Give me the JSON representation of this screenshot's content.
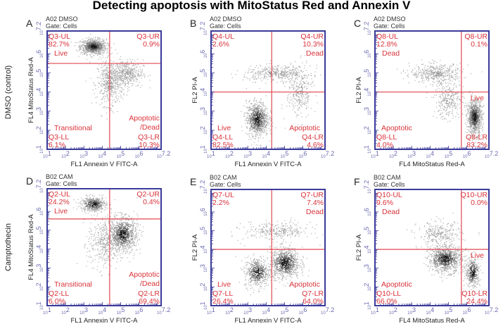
{
  "title": "Detecting apoptosis with MitoStatus Red and Annexin V",
  "row_labels": [
    "DMSO (control)",
    "Camptothecin"
  ],
  "colors": {
    "frame": "#3a3a9a",
    "gate": "#e0474f",
    "text_red": "#d9333a",
    "tick": "#6a6ab0",
    "dots": "#b0b0b0",
    "dense": "#1a1a1a"
  },
  "chart_data": [
    {
      "type": "scatter",
      "panel": "A",
      "sample": "A02 DMSO",
      "gate": "Gate: Cells",
      "xlabel": "FL1 Annexin V FITC-A",
      "ylabel": "FL4 MitoStatus Red-A",
      "xlim_log10": [
        1,
        7.2
      ],
      "ylim_log10": [
        1,
        7.2
      ],
      "x_ticks": [
        "10^1",
        "10^2",
        "10^3",
        "10^4",
        "10^5",
        "10^6",
        "10^7.2"
      ],
      "y_ticks": [
        "10^1",
        "10^2",
        "10^3",
        "10^4",
        "10^5",
        "10^6",
        "10^7.2"
      ],
      "gate_x_log10": 4.4,
      "gate_y_log10": 5.5,
      "quadrants": [
        {
          "id": "Q3-UL",
          "pct": "82.7%",
          "label": "Live"
        },
        {
          "id": "Q3-UR",
          "pct": "0.9%",
          "label": ""
        },
        {
          "id": "Q3-LL",
          "pct": "6.1%",
          "label": "Transitional"
        },
        {
          "id": "Q3-LR",
          "pct": "10.3%",
          "label": "Apoptotic\n/Dead"
        }
      ],
      "populations": [
        {
          "x": 3.5,
          "y": 6.4,
          "sx": 0.35,
          "sy": 0.2,
          "n": 900,
          "dense": true
        },
        {
          "x": 4.4,
          "y": 4.5,
          "sx": 0.35,
          "sy": 0.6,
          "n": 500,
          "dense": false
        },
        {
          "x": 5.3,
          "y": 5.0,
          "sx": 0.45,
          "sy": 0.35,
          "n": 450,
          "dense": false
        }
      ]
    },
    {
      "type": "scatter",
      "panel": "B",
      "sample": "A02 DMSO",
      "gate": "Gate: Cells",
      "xlabel": "FL1 Annexin V FITC-A",
      "ylabel": "FL2 PI-A",
      "xlim_log10": [
        1,
        7.2
      ],
      "ylim_log10": [
        1,
        7.2
      ],
      "x_ticks": [
        "10^1",
        "10^2",
        "10^3",
        "10^4",
        "10^5",
        "10^6",
        "10^7.2"
      ],
      "y_ticks": [
        "10^1",
        "10^2",
        "10^3",
        "10^4",
        "10^5",
        "10^6",
        "10^7.2"
      ],
      "gate_x_log10": 4.3,
      "gate_y_log10": 4.0,
      "quadrants": [
        {
          "id": "Q4-UL",
          "pct": "2.6%",
          "label": ""
        },
        {
          "id": "Q4-UR",
          "pct": "10.3%",
          "label": "Dead"
        },
        {
          "id": "Q4-LL",
          "pct": "82.5%",
          "label": "Live"
        },
        {
          "id": "Q4-LR",
          "pct": "4.6%",
          "label": "Apoptotic"
        }
      ],
      "populations": [
        {
          "x": 3.5,
          "y": 2.6,
          "sx": 0.3,
          "sy": 0.45,
          "n": 900,
          "dense": true
        },
        {
          "x": 4.6,
          "y": 5.0,
          "sx": 0.9,
          "sy": 0.2,
          "n": 400,
          "dense": false
        },
        {
          "x": 5.8,
          "y": 4.0,
          "sx": 0.35,
          "sy": 0.7,
          "n": 300,
          "dense": false
        }
      ]
    },
    {
      "type": "scatter",
      "panel": "C",
      "sample": "A02 DMSO",
      "gate": "Gate: Cells",
      "xlabel": "FL4 MitoStatus Red-A",
      "ylabel": "FL2 PI-A",
      "xlim_log10": [
        1,
        7.2
      ],
      "ylim_log10": [
        1,
        7.2
      ],
      "x_ticks": [
        "10^1",
        "10^2",
        "10^3",
        "10^4",
        "10^5",
        "10^6",
        "10^7.2"
      ],
      "y_ticks": [
        "10^1",
        "10^2",
        "10^3",
        "10^4",
        "10^5",
        "10^6",
        "10^7.2"
      ],
      "gate_x_log10": 5.7,
      "gate_y_log10": 4.0,
      "quadrants": [
        {
          "id": "Q8-UL",
          "pct": "12.8%",
          "label": "Dead"
        },
        {
          "id": "Q8-UR",
          "pct": "0.1%",
          "label": ""
        },
        {
          "id": "Q8-LL",
          "pct": "4.0%",
          "label": "Apoptotic"
        },
        {
          "id": "Q8-LR",
          "pct": "83.2%",
          "label": "Live"
        }
      ],
      "populations": [
        {
          "x": 6.4,
          "y": 2.7,
          "sx": 0.2,
          "sy": 0.45,
          "n": 900,
          "dense": true
        },
        {
          "x": 4.3,
          "y": 5.0,
          "sx": 0.7,
          "sy": 0.25,
          "n": 450,
          "dense": false
        },
        {
          "x": 5.0,
          "y": 3.6,
          "sx": 0.4,
          "sy": 0.5,
          "n": 300,
          "dense": false
        }
      ]
    },
    {
      "type": "scatter",
      "panel": "D",
      "sample": "B02 CAM",
      "gate": "Gate: Cells",
      "xlabel": "FL1 Annexin V FITC-A",
      "ylabel": "FL4 MitoStatus Red-A",
      "xlim_log10": [
        1,
        7.2
      ],
      "ylim_log10": [
        1,
        7.2
      ],
      "x_ticks": [
        "10^1",
        "10^2",
        "10^3",
        "10^4",
        "10^5",
        "10^6",
        "10^7.2"
      ],
      "y_ticks": [
        "10^1",
        "10^2",
        "10^3",
        "10^4",
        "10^5",
        "10^6",
        "10^7.2"
      ],
      "gate_x_log10": 4.4,
      "gate_y_log10": 5.6,
      "quadrants": [
        {
          "id": "Q2-UL",
          "pct": "24.2%",
          "label": "Live"
        },
        {
          "id": "Q2-UR",
          "pct": "0.4%",
          "label": ""
        },
        {
          "id": "Q2-LL",
          "pct": "6.0%",
          "label": "Transitional"
        },
        {
          "id": "Q2-LR",
          "pct": "69.4%",
          "label": "Apoptotic\n/Dead"
        }
      ],
      "populations": [
        {
          "x": 3.5,
          "y": 6.4,
          "sx": 0.35,
          "sy": 0.2,
          "n": 500,
          "dense": true
        },
        {
          "x": 5.1,
          "y": 4.8,
          "sx": 0.4,
          "sy": 0.45,
          "n": 900,
          "dense": true
        },
        {
          "x": 4.1,
          "y": 4.3,
          "sx": 0.45,
          "sy": 0.7,
          "n": 400,
          "dense": false
        }
      ]
    },
    {
      "type": "scatter",
      "panel": "E",
      "sample": "B02 CAM",
      "gate": "Gate: Cells",
      "xlabel": "FL1 Annexin V FITC-A",
      "ylabel": "FL2 PI-A",
      "xlim_log10": [
        1,
        7.2
      ],
      "ylim_log10": [
        1,
        7.2
      ],
      "x_ticks": [
        "10^1",
        "10^2",
        "10^3",
        "10^4",
        "10^5",
        "10^6",
        "10^7.2"
      ],
      "y_ticks": [
        "10^1",
        "10^2",
        "10^3",
        "10^4",
        "10^5",
        "10^6",
        "10^7.2"
      ],
      "gate_x_log10": 4.3,
      "gate_y_log10": 4.0,
      "quadrants": [
        {
          "id": "Q7-UL",
          "pct": "2.2%",
          "label": ""
        },
        {
          "id": "Q7-UR",
          "pct": "7.4%",
          "label": "Dead"
        },
        {
          "id": "Q7-LL",
          "pct": "26.4%",
          "label": "Live"
        },
        {
          "id": "Q7-LR",
          "pct": "64.0%",
          "label": "Apoptotic"
        }
      ],
      "populations": [
        {
          "x": 3.5,
          "y": 2.8,
          "sx": 0.35,
          "sy": 0.4,
          "n": 500,
          "dense": true
        },
        {
          "x": 5.0,
          "y": 3.3,
          "sx": 0.4,
          "sy": 0.4,
          "n": 900,
          "dense": true
        },
        {
          "x": 4.6,
          "y": 5.0,
          "sx": 0.9,
          "sy": 0.25,
          "n": 300,
          "dense": false
        }
      ]
    },
    {
      "type": "scatter",
      "panel": "F",
      "sample": "B02 CAM",
      "gate": "Gate: Cells",
      "xlabel": "FL4 MitoStatus Red-A",
      "ylabel": "FL2 PI-A",
      "xlim_log10": [
        1,
        7.2
      ],
      "ylim_log10": [
        1,
        7.2
      ],
      "x_ticks": [
        "10^1",
        "10^2",
        "10^3",
        "10^4",
        "10^5",
        "10^6",
        "10^7.2"
      ],
      "y_ticks": [
        "10^1",
        "10^2",
        "10^3",
        "10^4",
        "10^5",
        "10^6",
        "10^7.2"
      ],
      "gate_x_log10": 5.7,
      "gate_y_log10": 4.0,
      "quadrants": [
        {
          "id": "Q10-UL",
          "pct": "9.6%",
          "label": "Dead"
        },
        {
          "id": "Q10-UR",
          "pct": "0.0%",
          "label": ""
        },
        {
          "id": "Q10-LL",
          "pct": "66.0%",
          "label": "Apoptotic"
        },
        {
          "id": "Q10-LR",
          "pct": "24.4%",
          "label": "Live"
        }
      ],
      "populations": [
        {
          "x": 4.8,
          "y": 3.5,
          "sx": 0.45,
          "sy": 0.35,
          "n": 900,
          "dense": true
        },
        {
          "x": 6.3,
          "y": 2.8,
          "sx": 0.2,
          "sy": 0.4,
          "n": 400,
          "dense": true
        },
        {
          "x": 4.5,
          "y": 4.8,
          "sx": 0.6,
          "sy": 0.35,
          "n": 300,
          "dense": false
        }
      ]
    }
  ]
}
